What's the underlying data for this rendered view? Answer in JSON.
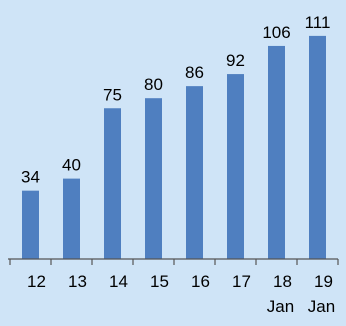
{
  "chart_data": {
    "type": "bar",
    "categories": [
      "12",
      "13",
      "14",
      "15",
      "16",
      "17",
      "18",
      "19"
    ],
    "category_sublabels": [
      "",
      "",
      "",
      "",
      "",
      "",
      "Jan",
      "Jan"
    ],
    "values": [
      34,
      40,
      75,
      80,
      86,
      92,
      106,
      111
    ],
    "title": "",
    "xlabel": "",
    "ylabel": "",
    "ylim": [
      0,
      125
    ],
    "grid": false,
    "legend": "none",
    "colors": {
      "bar": "#4f7fc0",
      "background": "#cfe4f7",
      "axis": "#555555",
      "text": "#000000"
    }
  }
}
